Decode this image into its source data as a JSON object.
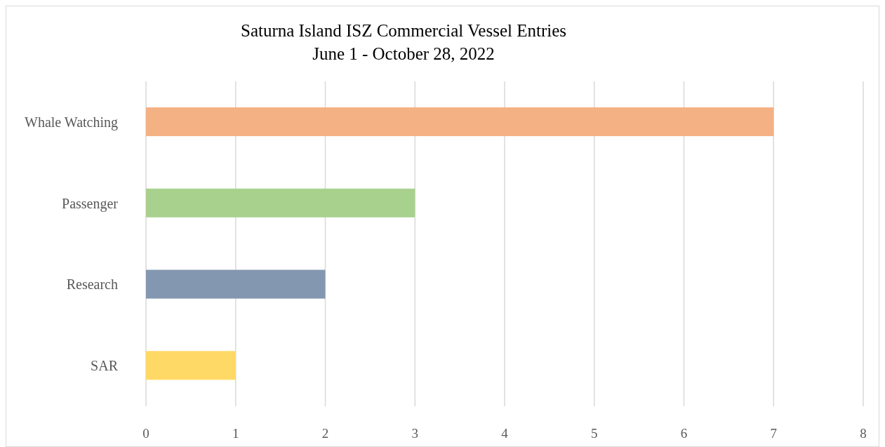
{
  "chart_data": {
    "type": "bar",
    "orientation": "horizontal",
    "title": "Saturna Island ISZ Commercial Vessel Entries",
    "subtitle": "June 1 - October 28, 2022",
    "categories": [
      "Whale Watching",
      "Passenger",
      "Research",
      "SAR"
    ],
    "values": [
      7,
      3,
      2,
      1
    ],
    "colors": [
      "#f4b183",
      "#a9d18e",
      "#8497b0",
      "#ffd966"
    ],
    "xlim": [
      0,
      8
    ],
    "xticks": [
      0,
      1,
      2,
      3,
      4,
      5,
      6,
      7,
      8
    ],
    "grid": "x"
  }
}
